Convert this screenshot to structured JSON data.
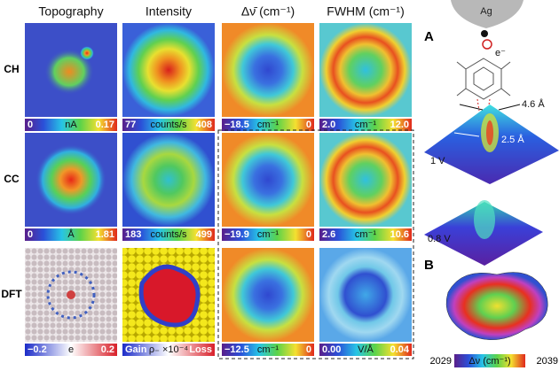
{
  "figure": {
    "column_headers": [
      "Topography",
      "Intensity",
      "Δν̄ (cm⁻¹)",
      "FWHM (cm⁻¹)"
    ],
    "rows": [
      {
        "label": "CH",
        "colorbars": [
          {
            "min": "0",
            "unit": "nA",
            "max": "0.17"
          },
          {
            "min": "77",
            "unit": "counts/s",
            "max": "408"
          },
          {
            "min": "−18.5",
            "unit": "cm⁻¹",
            "max": "0"
          },
          {
            "min": "2.0",
            "unit": "cm⁻¹",
            "max": "12.0"
          }
        ]
      },
      {
        "label": "CC",
        "colorbars": [
          {
            "min": "0",
            "unit": "Å",
            "max": "1.81"
          },
          {
            "min": "183",
            "unit": "counts/s",
            "max": "499"
          },
          {
            "min": "−19.9",
            "unit": "cm⁻¹",
            "max": "0"
          },
          {
            "min": "2.6",
            "unit": "cm⁻¹",
            "max": "10.6"
          }
        ]
      },
      {
        "label": "DFT",
        "colorbars": [
          {
            "min": "−0.2",
            "unit": "e",
            "max": "0.2"
          },
          {
            "min": "Gain",
            "unit": "ρ₋ ×10⁻⁴",
            "max": "Loss"
          },
          {
            "min": "−12.5",
            "unit": "cm⁻¹",
            "max": "0"
          },
          {
            "min": "0.00",
            "unit": "V/Å",
            "max": "0.04"
          }
        ]
      }
    ],
    "panel_a": {
      "label": "A",
      "tip": "Ag",
      "electron": "e⁻",
      "distance_1": "4.6 Å",
      "distance_2": "2.5 Å",
      "bias_1": "1 V",
      "bias_2": "0.8 V"
    },
    "panel_b": {
      "label": "B",
      "colorbar_min": "2029",
      "colorbar_unit": "Δν (cm⁻¹)",
      "colorbar_max": "2039"
    }
  }
}
